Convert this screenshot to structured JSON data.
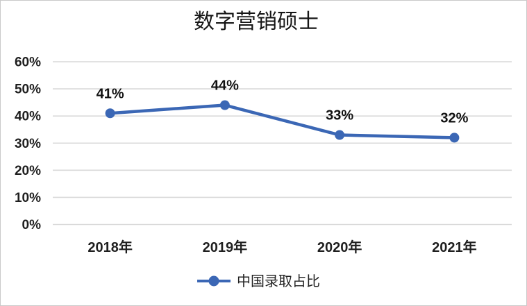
{
  "chart_data": {
    "type": "line",
    "title": "数字营销硕士",
    "categories": [
      "2018年",
      "2019年",
      "2020年",
      "2021年"
    ],
    "series": [
      {
        "name": "中国录取占比",
        "values": [
          41,
          44,
          33,
          32
        ],
        "data_labels": [
          "41%",
          "44%",
          "33%",
          "32%"
        ]
      }
    ],
    "y_ticks": [
      "0%",
      "10%",
      "20%",
      "30%",
      "40%",
      "50%",
      "60%"
    ],
    "y_tick_values": [
      0,
      10,
      20,
      30,
      40,
      50,
      60
    ],
    "ylim": [
      0,
      60
    ],
    "grid": true,
    "legend_position": "bottom",
    "colors": {
      "line": "#3b67b5",
      "marker": "#3b67b5",
      "grid": "#d9d9d9",
      "text": "#1f1f1f",
      "background": "#ffffff",
      "border": "#c9c9c9"
    }
  }
}
